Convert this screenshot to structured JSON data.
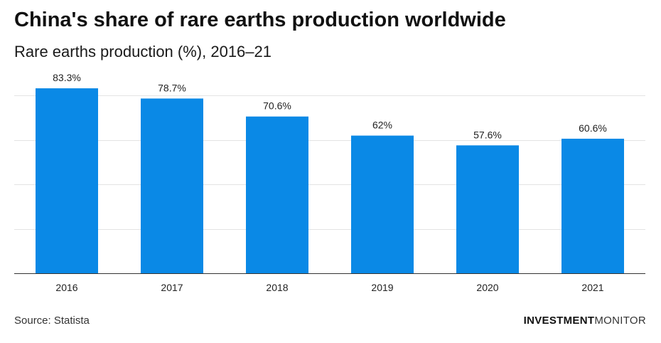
{
  "title": "China's share of rare earths production worldwide",
  "subtitle": "Rare earths production (%), 2016–21",
  "source": "Source: Statista",
  "brand": {
    "part1": "INVESTMENT",
    "part2": "MONITOR"
  },
  "colors": {
    "bar": "#0a89e6",
    "grid": "#e3e3e3",
    "axis": "#333333"
  },
  "chart_data": {
    "type": "bar",
    "categories": [
      "2016",
      "2017",
      "2018",
      "2019",
      "2020",
      "2021"
    ],
    "values": [
      83.3,
      78.7,
      70.6,
      62,
      57.6,
      60.6
    ],
    "data_labels": [
      "83.3%",
      "78.7%",
      "70.6%",
      "62%",
      "57.6%",
      "60.6%"
    ],
    "ylim": [
      0,
      100
    ],
    "y_grid_step": 20,
    "grid": true,
    "ytick_labels_shown": false
  }
}
